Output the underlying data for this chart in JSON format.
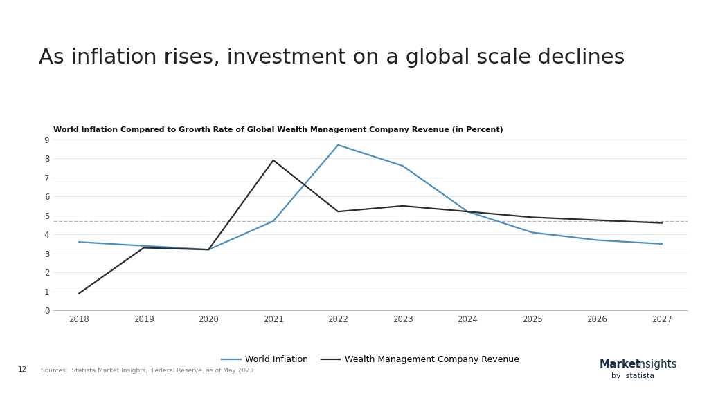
{
  "title": "As inflation rises, investment on a global scale declines",
  "subtitle": "World Inflation Compared to Growth Rate of Global Wealth Management Company Revenue (in Percent)",
  "years": [
    2018,
    2019,
    2020,
    2021,
    2022,
    2023,
    2024,
    2025,
    2026,
    2027
  ],
  "world_inflation": [
    3.6,
    3.4,
    3.2,
    4.7,
    8.7,
    7.6,
    5.2,
    4.1,
    3.7,
    3.5
  ],
  "wealth_mgmt_revenue": [
    0.9,
    3.3,
    3.2,
    7.9,
    5.2,
    5.5,
    5.2,
    4.9,
    4.75,
    4.6
  ],
  "dashed_line_y": 4.7,
  "inflation_color": "#4a8fc0",
  "revenue_color": "#2c2c2c",
  "dashed_color": "#aaaaaa",
  "background_color": "#ffffff",
  "ylim": [
    0,
    9
  ],
  "yticks": [
    0,
    1,
    2,
    3,
    4,
    5,
    6,
    7,
    8,
    9
  ],
  "legend_inflation": "World Inflation",
  "legend_revenue": "Wealth Management Company Revenue",
  "source_text": "Sources:  Statista Market Insights,  Federal Reserve, as of May 2023",
  "page_num": "12",
  "title_fontsize": 22,
  "subtitle_fontsize": 8,
  "axis_fontsize": 8.5,
  "legend_fontsize": 9
}
